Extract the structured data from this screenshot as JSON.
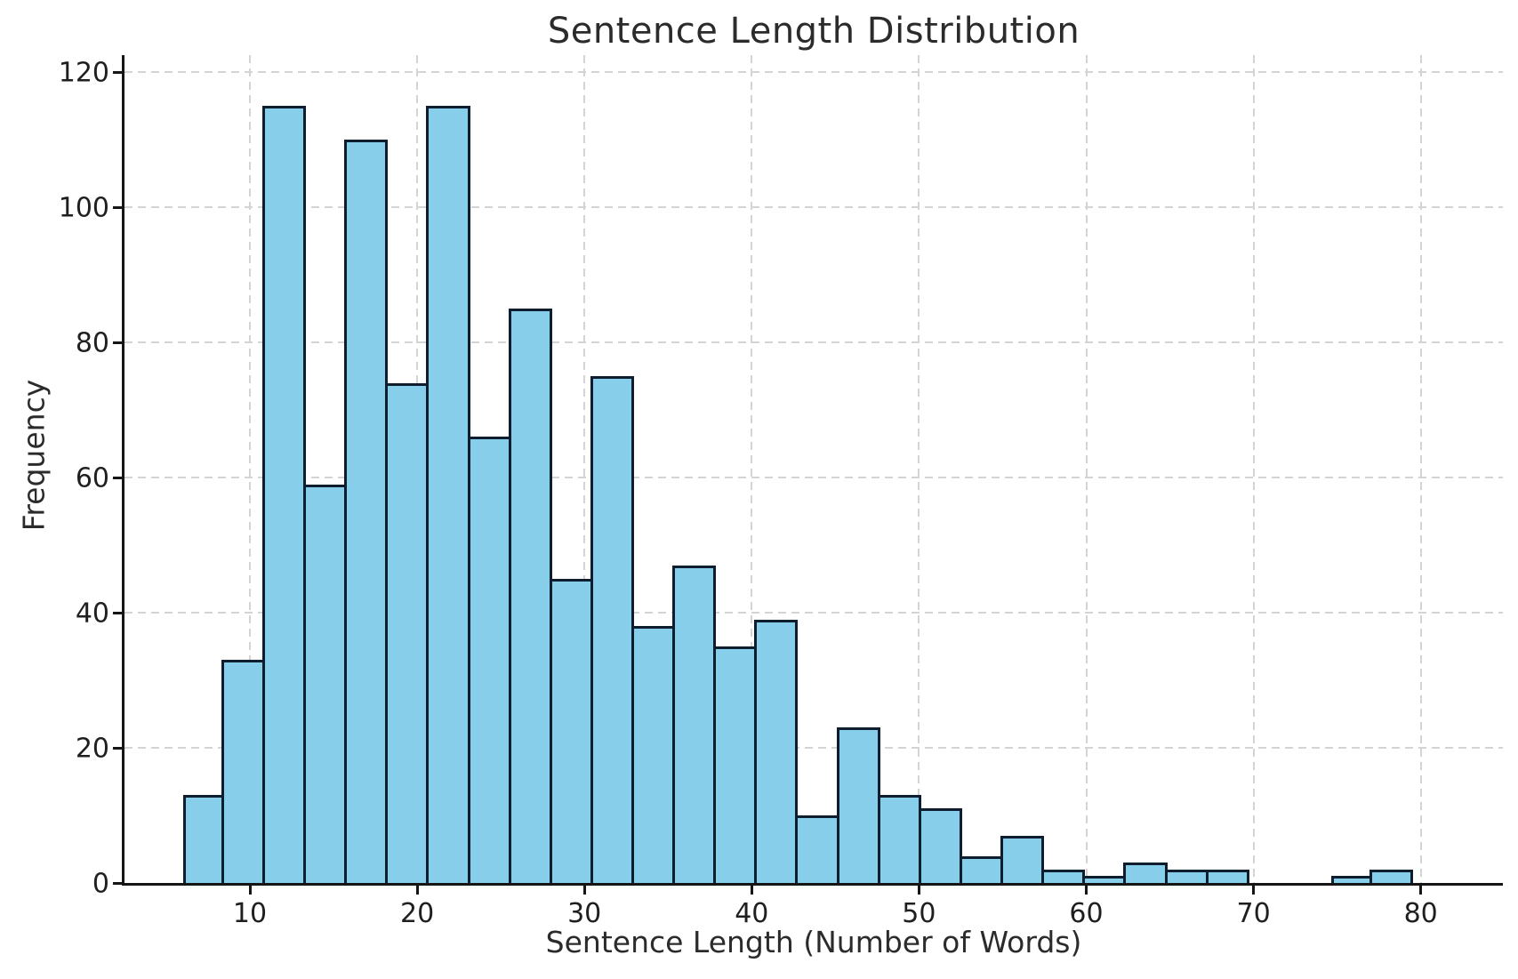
{
  "chart_data": {
    "type": "bar",
    "subtype": "histogram",
    "title": "Sentence Length Distribution",
    "xlabel": "Sentence Length (Number of Words)",
    "ylabel": "Frequency",
    "bin_edges": [
      6.0,
      8.45,
      10.9,
      13.35,
      15.81,
      18.26,
      20.71,
      23.16,
      25.61,
      28.06,
      30.52,
      32.97,
      35.42,
      37.87,
      40.32,
      42.77,
      45.23,
      47.68,
      50.13,
      52.58,
      55.03,
      57.48,
      59.94,
      62.39,
      64.84,
      67.29,
      69.74,
      72.19,
      74.65,
      77.1,
      79.55,
      82.0
    ],
    "values": [
      13,
      33,
      115,
      59,
      110,
      74,
      115,
      66,
      85,
      45,
      75,
      38,
      47,
      35,
      39,
      10,
      23,
      13,
      11,
      4,
      7,
      2,
      1,
      3,
      2,
      2,
      0,
      0,
      1,
      2,
      0
    ],
    "x_ticks": [
      10,
      20,
      30,
      40,
      50,
      60,
      70,
      80
    ],
    "y_ticks": [
      0,
      20,
      40,
      60,
      80,
      100,
      120
    ],
    "xlim": [
      2.5,
      84
    ],
    "ylim": [
      0,
      122.5
    ],
    "grid": true,
    "grid_style": "dashed",
    "legend": null,
    "colors": {
      "bar_fill": "#87CEEB",
      "bar_edge": "#0e1e2e",
      "gridline": "#d4d4d4",
      "spine": "#151515",
      "text": "#2b2b2b",
      "background": "#ffffff"
    }
  }
}
